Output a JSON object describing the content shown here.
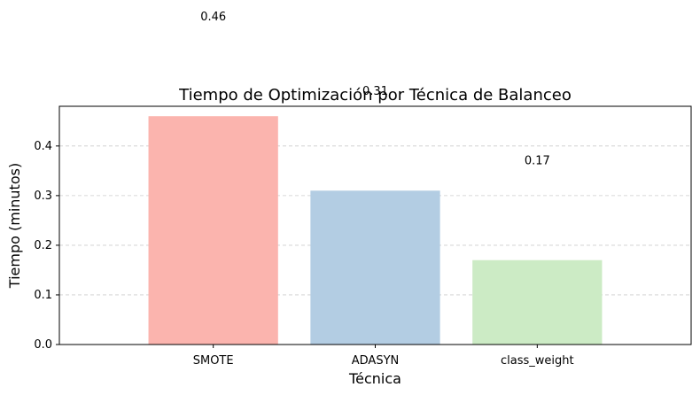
{
  "chart_data": {
    "type": "bar",
    "title": "Tiempo de Optimización por Técnica de Balanceo",
    "xlabel": "Técnica",
    "ylabel": "Tiempo (minutos)",
    "categories": [
      "SMOTE",
      "ADASYN",
      "class_weight"
    ],
    "values": [
      0.46,
      0.31,
      0.17
    ],
    "data_labels": [
      "0.46",
      "0.31",
      "0.17"
    ],
    "bar_colors": [
      "#fbb4ae",
      "#b3cde3",
      "#ccebc5"
    ],
    "ylim": [
      0,
      0.48
    ],
    "yticks": [
      0.0,
      0.1,
      0.2,
      0.3,
      0.4
    ],
    "ytick_labels": [
      "0.0",
      "0.1",
      "0.2",
      "0.3",
      "0.4"
    ],
    "grid": "y-dashed",
    "legend": "none"
  }
}
